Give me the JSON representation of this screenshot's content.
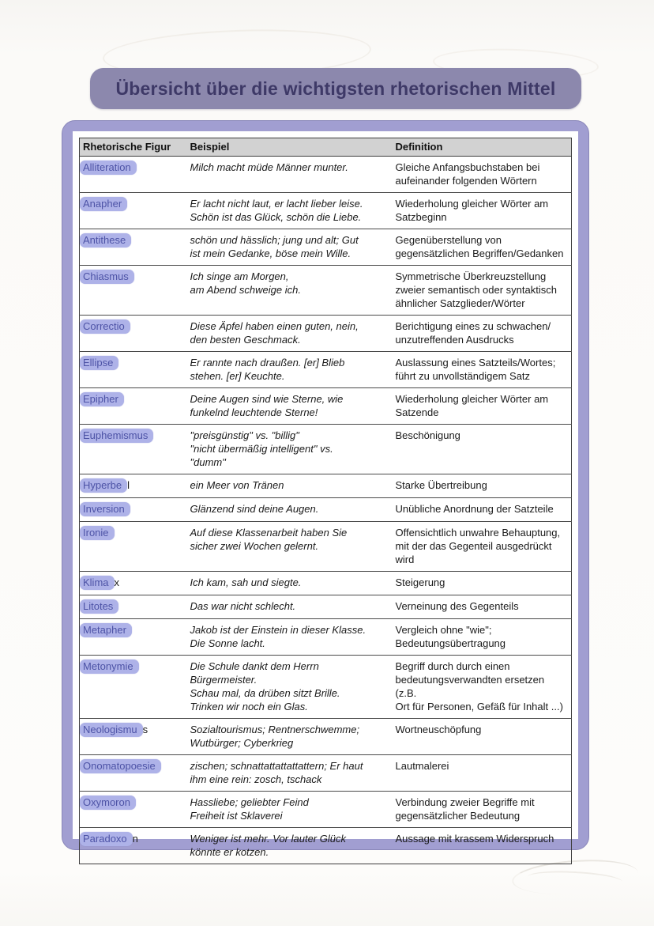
{
  "page": {
    "title": "Übersicht über die wichtigsten rhetorischen Mittel"
  },
  "table": {
    "headers": [
      "Rhetorische Figur",
      "Beispiel",
      "Definition"
    ],
    "rows": [
      {
        "figure": {
          "highlight": "Alliteration",
          "rest": ""
        },
        "beispiel": [
          "Milch macht müde Männer munter."
        ],
        "definition": [
          "Gleiche Anfangsbuchstaben bei",
          "aufeinander folgenden Wörtern"
        ]
      },
      {
        "figure": {
          "highlight": "Anapher",
          "rest": ""
        },
        "beispiel": [
          "Er lacht nicht laut, er lacht lieber leise.",
          "Schön ist das Glück, schön die Liebe."
        ],
        "definition": [
          "Wiederholung gleicher Wörter am",
          "Satzbeginn"
        ]
      },
      {
        "figure": {
          "highlight": "Antithese",
          "rest": ""
        },
        "beispiel": [
          "schön und hässlich; jung und alt; Gut",
          "ist mein Gedanke, böse mein Wille."
        ],
        "definition": [
          "Gegenüberstellung von",
          "gegensätzlichen Begriffen/Gedanken"
        ]
      },
      {
        "figure": {
          "highlight": "Chiasmus",
          "rest": ""
        },
        "beispiel": [
          "Ich singe am Morgen,",
          "am Abend schweige ich."
        ],
        "definition": [
          "Symmetrische Überkreuzstellung",
          "zweier semantisch oder syntaktisch",
          "ähnlicher Satzglieder/Wörter"
        ]
      },
      {
        "figure": {
          "highlight": "Correctio",
          "rest": ""
        },
        "beispiel": [
          "Diese Äpfel haben einen guten, nein,",
          "den besten Geschmack."
        ],
        "definition": [
          "Berichtigung eines zu schwachen/",
          "unzutreffenden Ausdrucks"
        ]
      },
      {
        "figure": {
          "highlight": "Ellipse",
          "rest": ""
        },
        "beispiel": [
          "Er rannte nach draußen. [er] Blieb",
          "stehen. [er] Keuchte."
        ],
        "definition": [
          "Auslassung eines Satzteils/Wortes;",
          "führt zu unvollständigem Satz"
        ]
      },
      {
        "figure": {
          "highlight": "Epipher",
          "rest": ""
        },
        "beispiel": [
          "Deine Augen sind wie Sterne, wie",
          "funkelnd leuchtende Sterne!"
        ],
        "definition": [
          "Wiederholung gleicher Wörter am",
          "Satzende"
        ]
      },
      {
        "figure": {
          "highlight": "Euphemismus",
          "rest": ""
        },
        "beispiel": [
          "\"preisgünstig\" vs. \"billig\"",
          "\"nicht übermäßig intelligent\" vs.",
          "\"dumm\""
        ],
        "definition": [
          "Beschönigung"
        ]
      },
      {
        "figure": {
          "highlight": "Hyperbe",
          "rest": "l"
        },
        "beispiel": [
          "ein Meer von Tränen"
        ],
        "definition": [
          "Starke Übertreibung"
        ]
      },
      {
        "figure": {
          "highlight": "Inversion",
          "rest": ""
        },
        "beispiel": [
          "Glänzend sind deine Augen."
        ],
        "definition": [
          "Unübliche Anordnung der Satzteile"
        ]
      },
      {
        "figure": {
          "highlight": "Ironie",
          "rest": ""
        },
        "beispiel": [
          "Auf diese Klassenarbeit haben Sie",
          "sicher zwei Wochen gelernt."
        ],
        "definition": [
          "Offensichtlich unwahre Behauptung,",
          "mit der das Gegenteil ausgedrückt",
          "wird"
        ]
      },
      {
        "figure": {
          "highlight": "Klima",
          "rest": "x"
        },
        "beispiel": [
          "Ich kam, sah und siegte."
        ],
        "definition": [
          "Steigerung"
        ]
      },
      {
        "figure": {
          "highlight": "Litotes",
          "rest": ""
        },
        "beispiel": [
          "Das war nicht schlecht."
        ],
        "definition": [
          "Verneinung des Gegenteils"
        ]
      },
      {
        "figure": {
          "highlight": "Metapher",
          "rest": ""
        },
        "beispiel": [
          "Jakob ist der Einstein in dieser Klasse.",
          "Die Sonne lacht."
        ],
        "definition": [
          "Vergleich ohne \"wie\";",
          "Bedeutungsübertragung"
        ]
      },
      {
        "figure": {
          "highlight": "Metonymie",
          "rest": ""
        },
        "beispiel": [
          "Die Schule dankt dem Herrn",
          "Bürgermeister.",
          "Schau mal, da drüben sitzt Brille.",
          "Trinken wir noch ein Glas."
        ],
        "definition": [
          "Begriff durch durch einen",
          "bedeutungsverwandten ersetzen (z.B.",
          "Ort für Personen, Gefäß für Inhalt ...)"
        ]
      },
      {
        "figure": {
          "highlight": "Neologismu",
          "rest": "s"
        },
        "beispiel": [
          "Sozialtourismus; Rentnerschwemme;",
          "Wutbürger; Cyberkrieg"
        ],
        "definition": [
          "Wortneuschöpfung"
        ]
      },
      {
        "figure": {
          "highlight": "Onomatopoesie",
          "rest": ""
        },
        "beispiel": [
          "zischen; schnattattattattattern; Er haut",
          "ihm eine rein: zosch, tschack"
        ],
        "definition": [
          "Lautmalerei"
        ]
      },
      {
        "figure": {
          "highlight": "Oxymoron",
          "rest": ""
        },
        "beispiel": [
          "Hassliebe; geliebter Feind",
          "Freiheit ist Sklaverei"
        ],
        "definition": [
          "Verbindung zweier Begriffe mit",
          "gegensätzlicher Bedeutung"
        ]
      },
      {
        "figure": {
          "highlight": "Paradoxo",
          "rest": "n"
        },
        "beispiel": [
          "Weniger ist mehr. Vor lauter Glück",
          "könnte er kotzen."
        ],
        "definition": [
          "Aussage mit krassem Widerspruch"
        ]
      }
    ]
  },
  "colors": {
    "banner_bg": "#8c88ad",
    "banner_text": "#3e3967",
    "frame_bg": "#a19ed1",
    "header_bg": "#d2d2d2",
    "highlight_pill": "#aeb2e8",
    "highlight_text": "#4d53a6"
  }
}
